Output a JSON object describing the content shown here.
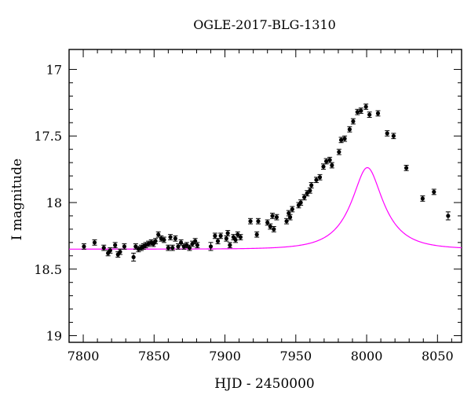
{
  "chart_data": {
    "type": "scatter",
    "title": "OGLE-2017-BLG-1310",
    "xlabel": "HJD - 2450000",
    "ylabel": "I magnitude",
    "xlim": [
      7790,
      8067
    ],
    "ylim": [
      19.05,
      16.85
    ],
    "y_inverted": true,
    "grid": false,
    "x_ticks": [
      7800,
      7850,
      7900,
      7950,
      8000,
      8050
    ],
    "x_tick_labels": [
      "7800",
      "7850",
      "7900",
      "7950",
      "8000",
      "8050"
    ],
    "y_ticks": [
      17,
      17.5,
      18,
      18.5,
      19
    ],
    "y_tick_labels": [
      "17",
      "17.5",
      "18",
      "18.5",
      "19"
    ],
    "colors": {
      "model": "#ff00ff",
      "data": "#000000",
      "frame": "#000000"
    },
    "model_curve": {
      "description_type": "microlensing fit",
      "t0": 8000.5,
      "tE": 24.0,
      "u0": 0.4,
      "fs": 0.46,
      "baseline_mag": 18.35,
      "x_range": [
        7790,
        8067
      ]
    },
    "series": [
      {
        "values": [
          [
            7800.5,
            18.33,
            0.02
          ],
          [
            7808,
            18.3,
            0.02
          ],
          [
            7814.5,
            18.34,
            0.02
          ],
          [
            7817.5,
            18.38,
            0.02
          ],
          [
            7819,
            18.36,
            0.02
          ],
          [
            7822.5,
            18.32,
            0.02
          ],
          [
            7824.5,
            18.39,
            0.02
          ],
          [
            7826,
            18.37,
            0.02
          ],
          [
            7829,
            18.33,
            0.02
          ],
          [
            7835.5,
            18.41,
            0.03
          ],
          [
            7837,
            18.33,
            0.02
          ],
          [
            7839,
            18.35,
            0.02
          ],
          [
            7841,
            18.34,
            0.02
          ],
          [
            7842.5,
            18.33,
            0.02
          ],
          [
            7844,
            18.32,
            0.02
          ],
          [
            7846,
            18.31,
            0.02
          ],
          [
            7848,
            18.3,
            0.02
          ],
          [
            7849.5,
            18.31,
            0.02
          ],
          [
            7851,
            18.29,
            0.02
          ],
          [
            7853,
            18.24,
            0.02
          ],
          [
            7855,
            18.27,
            0.02
          ],
          [
            7857,
            18.28,
            0.02
          ],
          [
            7860,
            18.34,
            0.02
          ],
          [
            7861.5,
            18.26,
            0.02
          ],
          [
            7863,
            18.34,
            0.02
          ],
          [
            7865,
            18.27,
            0.02
          ],
          [
            7867,
            18.33,
            0.02
          ],
          [
            7869,
            18.3,
            0.02
          ],
          [
            7871,
            18.33,
            0.02
          ],
          [
            7873,
            18.32,
            0.02
          ],
          [
            7875,
            18.34,
            0.02
          ],
          [
            7877,
            18.31,
            0.02
          ],
          [
            7879,
            18.29,
            0.02
          ],
          [
            7880.5,
            18.32,
            0.02
          ],
          [
            7890,
            18.33,
            0.03
          ],
          [
            7893,
            18.25,
            0.02
          ],
          [
            7895,
            18.29,
            0.02
          ],
          [
            7897,
            18.25,
            0.02
          ],
          [
            7901,
            18.27,
            0.02
          ],
          [
            7902,
            18.23,
            0.02
          ],
          [
            7903.5,
            18.32,
            0.02
          ],
          [
            7906,
            18.26,
            0.02
          ],
          [
            7907.5,
            18.28,
            0.02
          ],
          [
            7909,
            18.24,
            0.02
          ],
          [
            7911,
            18.26,
            0.02
          ],
          [
            7918,
            18.14,
            0.02
          ],
          [
            7922.5,
            18.24,
            0.02
          ],
          [
            7923.5,
            18.14,
            0.02
          ],
          [
            7930,
            18.15,
            0.02
          ],
          [
            7932,
            18.18,
            0.02
          ],
          [
            7933.5,
            18.1,
            0.02
          ],
          [
            7934.5,
            18.2,
            0.02
          ],
          [
            7936.5,
            18.11,
            0.02
          ],
          [
            7943.5,
            18.14,
            0.02
          ],
          [
            7945,
            18.08,
            0.02
          ],
          [
            7946,
            18.11,
            0.02
          ],
          [
            7947.5,
            18.05,
            0.02
          ],
          [
            7952,
            18.02,
            0.02
          ],
          [
            7953.5,
            18.0,
            0.02
          ],
          [
            7956,
            17.96,
            0.02
          ],
          [
            7958,
            17.93,
            0.02
          ],
          [
            7960,
            17.91,
            0.02
          ],
          [
            7961,
            17.87,
            0.02
          ],
          [
            7964.5,
            17.83,
            0.02
          ],
          [
            7967,
            17.81,
            0.02
          ],
          [
            7969.5,
            17.73,
            0.02
          ],
          [
            7971.5,
            17.69,
            0.02
          ],
          [
            7974,
            17.68,
            0.02
          ],
          [
            7975.5,
            17.72,
            0.02
          ],
          [
            7980.5,
            17.62,
            0.02
          ],
          [
            7982,
            17.53,
            0.02
          ],
          [
            7984.5,
            17.52,
            0.02
          ],
          [
            7988,
            17.45,
            0.02
          ],
          [
            7990.5,
            17.39,
            0.02
          ],
          [
            7993.5,
            17.32,
            0.02
          ],
          [
            7996,
            17.31,
            0.02
          ],
          [
            7999.5,
            17.28,
            0.02
          ],
          [
            8002,
            17.34,
            0.02
          ],
          [
            8008,
            17.33,
            0.02
          ],
          [
            8014.5,
            17.48,
            0.02
          ],
          [
            8019,
            17.5,
            0.02
          ],
          [
            8028,
            17.74,
            0.02
          ],
          [
            8039.5,
            17.97,
            0.02
          ],
          [
            8047.5,
            17.92,
            0.02
          ],
          [
            8057.5,
            18.1,
            0.03
          ]
        ]
      }
    ]
  }
}
